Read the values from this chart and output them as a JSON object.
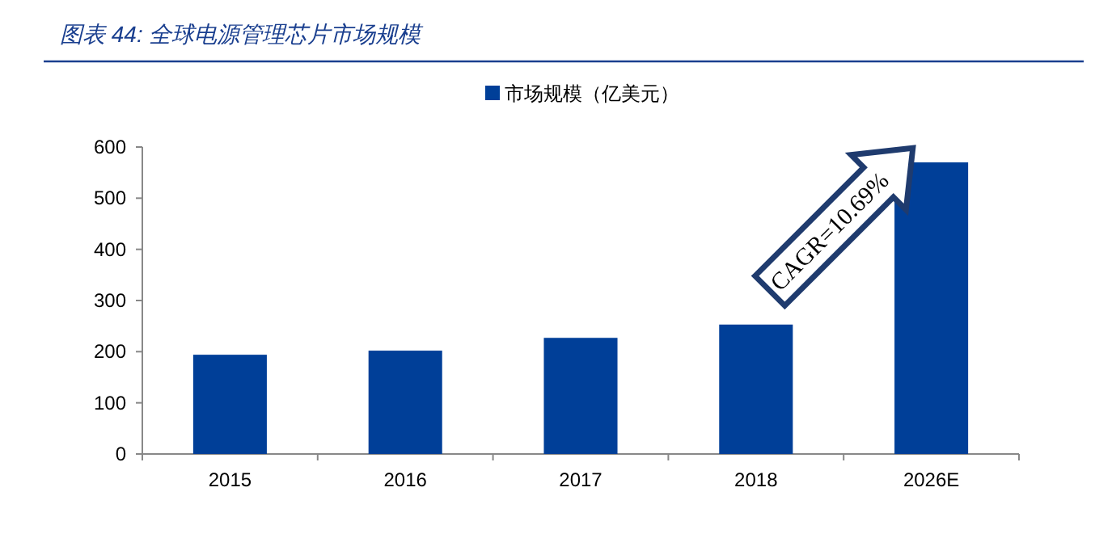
{
  "chart_data": {
    "type": "bar",
    "title": "图表 44: 全球电源管理芯片市场规模",
    "categories": [
      "2015",
      "2016",
      "2017",
      "2018",
      "2026E"
    ],
    "series": [
      {
        "name": "市场规模（亿美元）",
        "color": "#003f98",
        "values": [
          194,
          202,
          227,
          253,
          570
        ]
      }
    ],
    "ylim": [
      0,
      600
    ],
    "yticks": [
      0,
      100,
      200,
      300,
      400,
      500,
      600
    ],
    "annotations": [
      "CAGR=10.69%"
    ],
    "legend": "top",
    "grid": false
  }
}
